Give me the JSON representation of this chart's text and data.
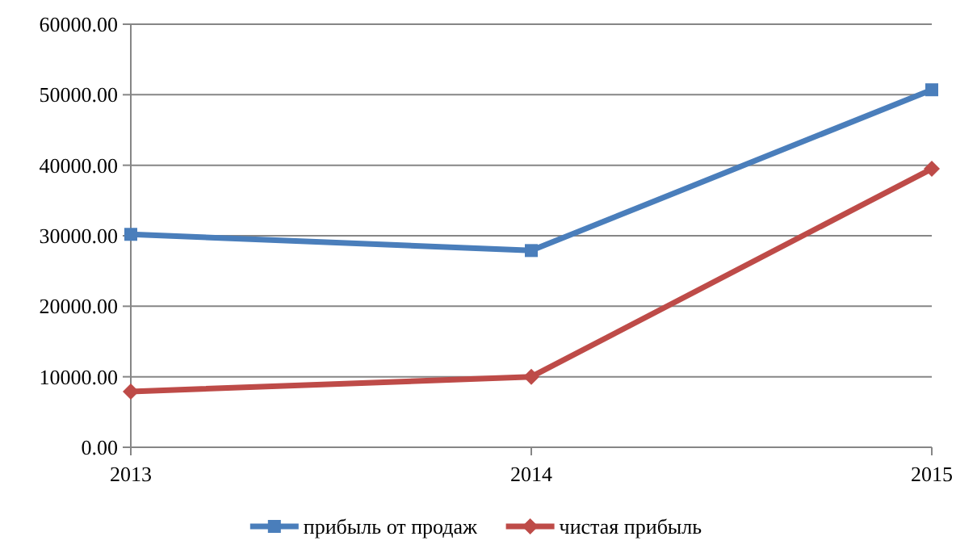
{
  "chart_data": {
    "type": "line",
    "x": [
      2013,
      2014,
      2015
    ],
    "xlim": [
      2013,
      2015
    ],
    "xticks": [
      2013,
      2014,
      2015
    ],
    "ylim": [
      0,
      60000
    ],
    "yticks": [
      {
        "value": 0,
        "label": "0.00"
      },
      {
        "value": 10000,
        "label": "10000.00"
      },
      {
        "value": 20000,
        "label": "20000.00"
      },
      {
        "value": 30000,
        "label": "30000.00"
      },
      {
        "value": 40000,
        "label": "40000.00"
      },
      {
        "value": 50000,
        "label": "50000.00"
      },
      {
        "value": 60000,
        "label": "60000.00"
      }
    ],
    "grid": "y",
    "legend": "bottom",
    "series": [
      {
        "name": "прибыль от продаж",
        "color": "#4a7ebb",
        "marker": "square",
        "values": [
          30200,
          27900,
          50700
        ]
      },
      {
        "name": "чистая прибыль",
        "color": "#be4b48",
        "marker": "diamond",
        "values": [
          7900,
          10000,
          39500
        ]
      }
    ]
  }
}
